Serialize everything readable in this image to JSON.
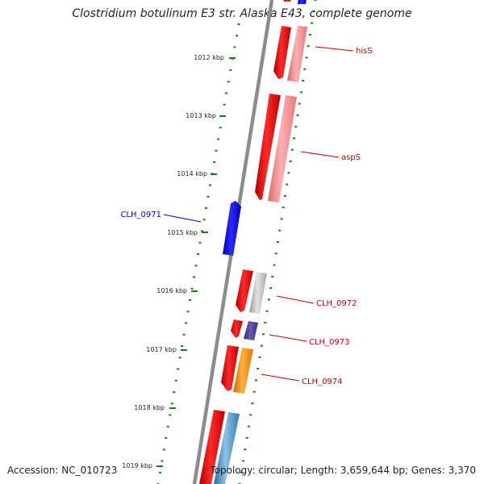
{
  "title": "Clostridium botulinum E3 str. Alaska E43, complete genome",
  "footer": {
    "accession": "Accession: NC_010723",
    "topology": "Topology: circular; Length: 3,659,644 bp; Genes: 3,370"
  },
  "colors": {
    "backbone": "#8c8c8c",
    "tick": "#1f7a1f",
    "forward_cds": "#ff0000",
    "reverse_cds": "#0000ff",
    "label_forward": "#cc0000",
    "label_reverse": "#0000cc"
  },
  "ticks": [
    "1012 kbp",
    "1013 kbp",
    "1014 kbp",
    "1015 kbp",
    "1016 kbp",
    "1017 kbp",
    "1018 kbp",
    "1019 kbp"
  ],
  "genes": [
    {
      "label": "hisS",
      "strand": "forward",
      "color": "#cc0000",
      "cog_color": "#f08080"
    },
    {
      "label": "aspS",
      "strand": "forward",
      "color": "#cc0000",
      "cog_color": "#f08080"
    },
    {
      "label": "CLH_0971",
      "strand": "reverse",
      "color": "#0000cc",
      "cog_color": ""
    },
    {
      "label": "CLH_0972",
      "strand": "forward",
      "color": "#cc0000",
      "cog_color": "#bdbdbd"
    },
    {
      "label": "CLH_0973",
      "strand": "forward",
      "color": "#cc0000",
      "cog_color": "#4b3c8c"
    },
    {
      "label": "CLH_0974",
      "strand": "forward",
      "color": "#cc0000",
      "cog_color": "#ff8c00"
    },
    {
      "label": "",
      "strand": "forward",
      "color": "#cc0000",
      "cog_color": "#4a8fc4"
    }
  ]
}
